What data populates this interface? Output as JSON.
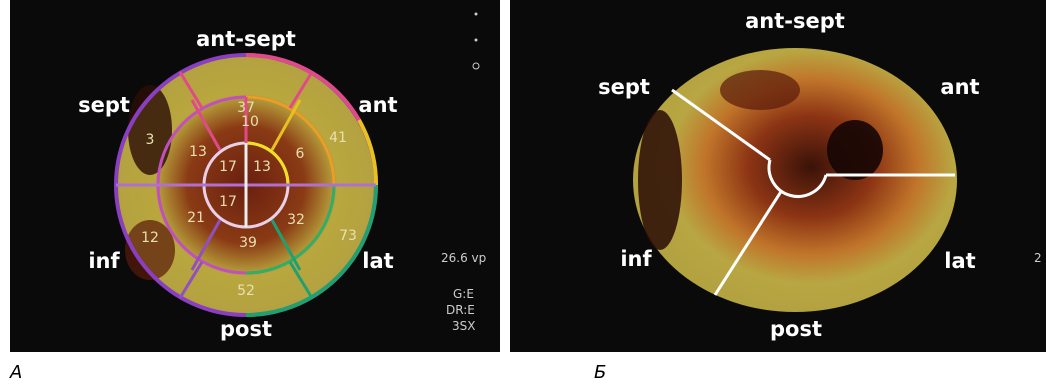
{
  "panel_a": {
    "labels": {
      "ant_sept": "ant-sept",
      "sept": "sept",
      "ant": "ant",
      "inf": "inf",
      "lat": "lat",
      "post": "post"
    },
    "segments": {
      "outer": [
        37,
        41,
        73,
        52,
        12,
        3
      ],
      "middle": [
        10,
        6,
        32,
        39,
        21,
        13
      ],
      "apex": [
        17,
        13,
        17
      ]
    },
    "side_text": [
      "26.6 vp",
      "G:E",
      "DR:E",
      "3SX"
    ]
  },
  "panel_b": {
    "labels": {
      "ant_sept": "ant-sept",
      "sept": "sept",
      "ant": "ant",
      "inf": "inf",
      "lat": "lat",
      "post": "post"
    },
    "edge_text": "2"
  },
  "captions": [
    "A",
    "Б"
  ]
}
